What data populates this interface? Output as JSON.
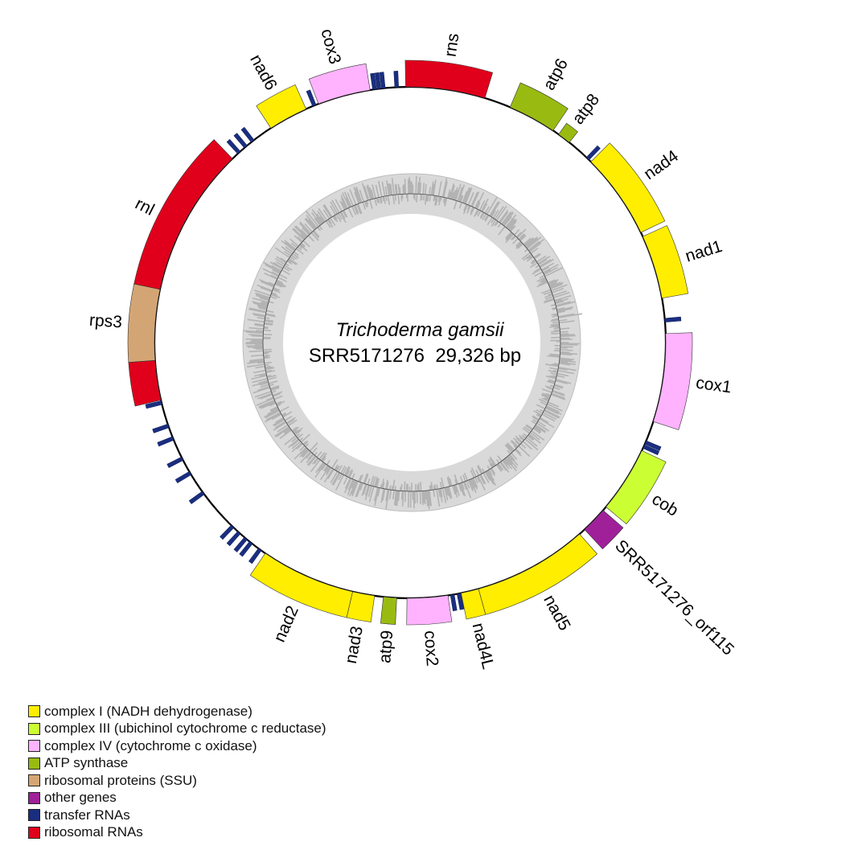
{
  "genome": {
    "organism": "Trichoderma gamsii",
    "accession_length": "SRR5171276  29,326 bp",
    "length_bp": 29326
  },
  "colors": {
    "complex_I": "#FFEE00",
    "complex_III": "#CCFF33",
    "complex_IV": "#FFB3FF",
    "atp": "#99BB11",
    "ssu": "#D4A574",
    "other": "#A0209A",
    "trna": "#1A2E80",
    "rrna": "#E0001B"
  },
  "genes": [
    {
      "name": "rns",
      "start": 29245,
      "end": 1385,
      "cat": "rrna"
    },
    {
      "name": "atp6",
      "start": 1874,
      "end": 2770,
      "cat": "atp"
    },
    {
      "name": "atp8",
      "start": 2892,
      "end": 3136,
      "cat": "atp"
    },
    {
      "name": "nad4",
      "start": 3666,
      "end": 5254,
      "cat": "complex_I"
    },
    {
      "name": "nad1",
      "start": 5336,
      "end": 6517,
      "cat": "complex_I"
    },
    {
      "name": "cox1",
      "start": 7168,
      "end": 8798,
      "cat": "complex_IV"
    },
    {
      "name": "cob",
      "start": 9368,
      "end": 10590,
      "cat": "complex_III"
    },
    {
      "name": "SRR5171276_orf115",
      "start": 10671,
      "end": 11160,
      "cat": "other"
    },
    {
      "name": "nad5",
      "start": 11282,
      "end": 13400,
      "cat": "complex_I"
    },
    {
      "name": "nad4L",
      "start": 13400,
      "end": 13726,
      "cat": "complex_I"
    },
    {
      "name": "cox2",
      "start": 13970,
      "end": 14720,
      "cat": "complex_IV"
    },
    {
      "name": "atp9",
      "start": 14907,
      "end": 15152,
      "cat": "atp"
    },
    {
      "name": "nad3",
      "start": 15314,
      "end": 15722,
      "cat": "complex_I"
    },
    {
      "name": "nad2",
      "start": 15722,
      "end": 17473,
      "cat": "complex_I"
    },
    {
      "name": "rnl",
      "start": 20935,
      "end": 25741,
      "cat": "rrna",
      "exons": [
        [
          20935,
          21668
        ],
        [
          22972,
          25741
        ]
      ]
    },
    {
      "name": "rps3",
      "start": 21668,
      "end": 22972,
      "cat": "ssu"
    },
    {
      "name": "nad6",
      "start": 26637,
      "end": 27370,
      "cat": "complex_I"
    },
    {
      "name": "cox3",
      "start": 27615,
      "end": 28592,
      "cat": "complex_IV"
    }
  ],
  "trna_positions": [
    3584,
    6924,
    9205,
    9286,
    13767,
    13889,
    17595,
    17799,
    17921,
    18084,
    18247,
    19062,
    19494,
    19795,
    20202,
    20446,
    20886,
    25904,
    26067,
    26230,
    27533,
    28675,
    28755,
    28836,
    29081
  ],
  "legend": [
    {
      "label": "complex I (NADH dehydrogenase)",
      "cat": "complex_I"
    },
    {
      "label": "complex III (ubichinol cytochrome c reductase)",
      "cat": "complex_III"
    },
    {
      "label": "complex IV (cytochrome c oxidase)",
      "cat": "complex_IV"
    },
    {
      "label": "ATP synthase",
      "cat": "atp"
    },
    {
      "label": "ribosomal proteins (SSU)",
      "cat": "ssu"
    },
    {
      "label": "other genes",
      "cat": "other"
    },
    {
      "label": "transfer RNAs",
      "cat": "trna"
    },
    {
      "label": "ribosomal RNAs",
      "cat": "rrna"
    }
  ]
}
